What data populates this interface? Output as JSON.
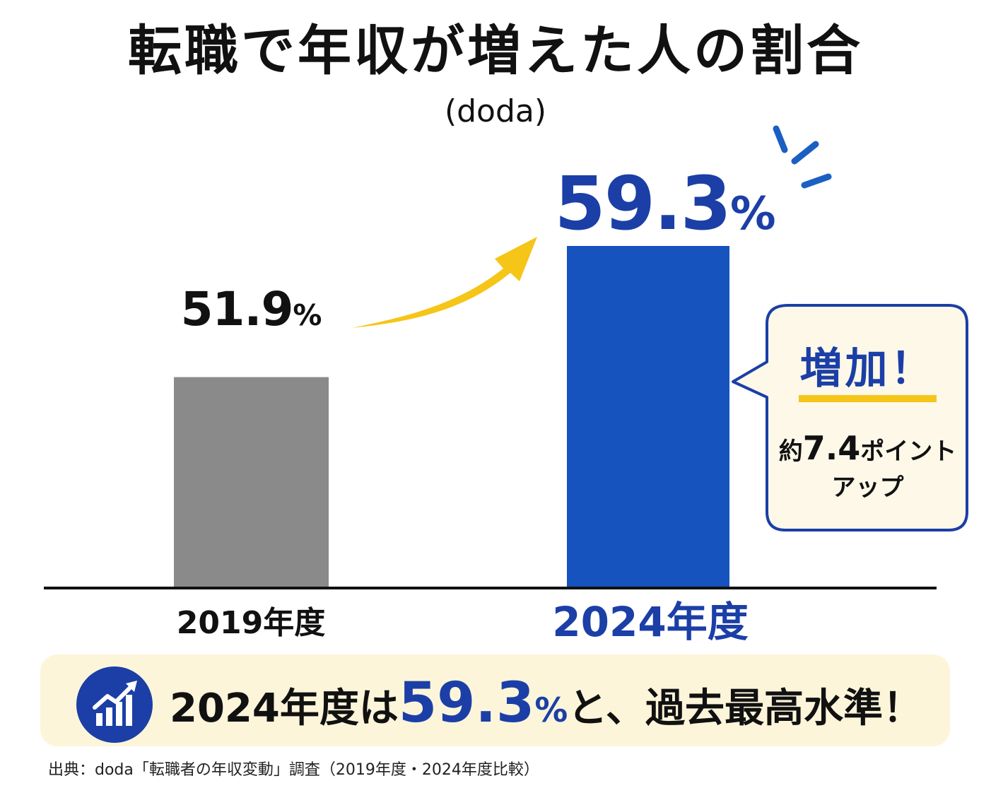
{
  "title": "転職で年収が増えた人の割合",
  "subtitle": "(doda)",
  "chart_data": {
    "type": "bar",
    "categories": [
      "2019年度",
      "2024年度"
    ],
    "values": [
      51.9,
      59.3
    ],
    "value_labels": [
      "51.9",
      "59.3"
    ],
    "unit": "%",
    "ylim": [
      0,
      65
    ],
    "colors": [
      "#8a8a8a",
      "#1653be"
    ],
    "grid": false
  },
  "callout": {
    "heading": "増加！",
    "prefix": "約",
    "number": "7.4",
    "suffix": "ポイント",
    "line2": "アップ"
  },
  "banner": {
    "icon": "chart-up-icon",
    "text_before": "2024年度は",
    "highlight_value": "59.3",
    "highlight_unit": "%",
    "text_after": "と、過去最高水準！"
  },
  "source": "出典：doda「転職者の年収変動」調査（2019年度・2024年度比較）",
  "colors": {
    "accent_blue": "#1b3fa6",
    "arrow_yellow": "#f5c518",
    "banner_bg": "#fdf5da",
    "callout_bg": "#fdf8e8"
  }
}
